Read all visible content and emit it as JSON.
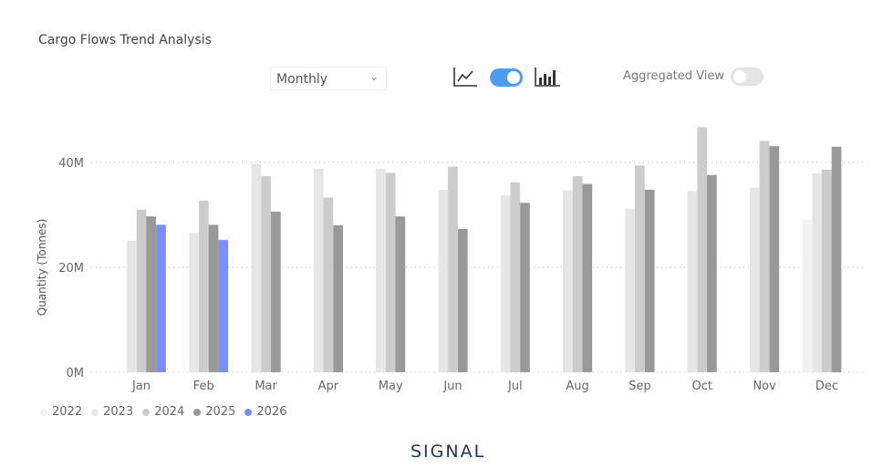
{
  "header": {
    "title": "Cargo Flows Trend Analysis"
  },
  "controls": {
    "period_select": {
      "value": "Monthly"
    },
    "chart_type_toggle": {
      "left_icon": "line-chart-icon",
      "right_icon": "bar-chart-icon",
      "state": "bar",
      "color": "#4f9bf0"
    },
    "aggregated_view": {
      "label": "Aggregated View",
      "enabled": false
    }
  },
  "branding": {
    "logo_text": "SIGNAL"
  },
  "chart_data": {
    "type": "bar",
    "title": "",
    "xlabel": "",
    "ylabel": "Quantity (Tonnes)",
    "ylim": [
      0,
      40000000
    ],
    "yticks": [
      "0M",
      "20M",
      "40M"
    ],
    "grid": true,
    "legend_position": "bottom-left",
    "categories": [
      "Jan",
      "Feb",
      "Mar",
      "Apr",
      "May",
      "Jun",
      "Jul",
      "Aug",
      "Sep",
      "Oct",
      "Nov",
      "Dec"
    ],
    "series": [
      {
        "name": "2022",
        "color": "#f2f2f2",
        "values": [
          null,
          null,
          null,
          null,
          null,
          null,
          null,
          null,
          null,
          null,
          null,
          29.1
        ]
      },
      {
        "name": "2023",
        "color": "#e6e6e6",
        "values": [
          25.1,
          26.6,
          39.7,
          38.8,
          38.8,
          34.8,
          33.7,
          34.7,
          31.2,
          34.5,
          35.2,
          37.9
        ]
      },
      {
        "name": "2024",
        "color": "#cccccc",
        "values": [
          31.0,
          32.7,
          37.4,
          33.3,
          38.0,
          39.2,
          36.2,
          37.4,
          39.4,
          46.7,
          44.1,
          38.6
        ]
      },
      {
        "name": "2025",
        "color": "#999999",
        "values": [
          29.7,
          28.1,
          30.6,
          28.0,
          29.7,
          27.3,
          32.3,
          35.9,
          34.8,
          37.6,
          43.1,
          43.0
        ]
      },
      {
        "name": "2026",
        "color": "#7b8cff",
        "values": [
          28.1,
          25.2,
          null,
          null,
          null,
          null,
          null,
          null,
          null,
          null,
          null,
          null
        ]
      }
    ],
    "value_unit": "M tonnes"
  }
}
